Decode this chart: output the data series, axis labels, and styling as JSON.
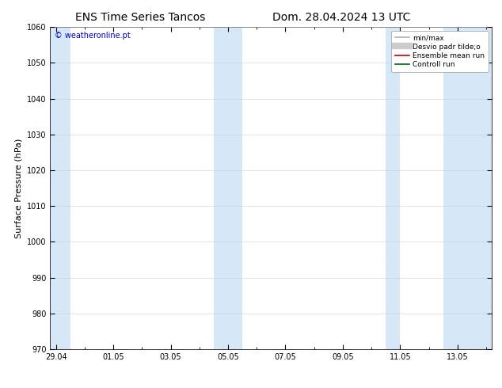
{
  "title_left": "ENS Time Series Tancos",
  "title_right": "Dom. 28.04.2024 13 UTC",
  "ylabel": "Surface Pressure (hPa)",
  "ylim": [
    970,
    1060
  ],
  "yticks": [
    970,
    980,
    990,
    1000,
    1010,
    1020,
    1030,
    1040,
    1050,
    1060
  ],
  "xtick_labels": [
    "29.04",
    "01.05",
    "03.05",
    "05.05",
    "07.05",
    "09.05",
    "11.05",
    "13.05"
  ],
  "xtick_positions": [
    0,
    2,
    4,
    6,
    8,
    10,
    12,
    14
  ],
  "xlim": [
    -0.2,
    15.2
  ],
  "shaded_bands": [
    {
      "x_start": -0.2,
      "x_end": 0.5
    },
    {
      "x_start": 5.5,
      "x_end": 6.5
    },
    {
      "x_start": 11.5,
      "x_end": 12.0
    },
    {
      "x_start": 13.5,
      "x_end": 15.2
    }
  ],
  "shade_color": "#d6e8f7",
  "watermark": "© weatheronline.pt",
  "watermark_color": "#0000bb",
  "legend_entries": [
    {
      "label": "min/max",
      "color": "#b0b0b0",
      "lw": 1.2,
      "style": "-"
    },
    {
      "label": "Desvio padr tilde;o",
      "color": "#cccccc",
      "lw": 6,
      "style": "-"
    },
    {
      "label": "Ensemble mean run",
      "color": "#cc0000",
      "lw": 1.2,
      "style": "-"
    },
    {
      "label": "Controll run",
      "color": "#006600",
      "lw": 1.2,
      "style": "-"
    }
  ],
  "bg_color": "#ffffff",
  "grid_color": "#cccccc",
  "tick_label_fontsize": 7,
  "axis_label_fontsize": 8,
  "title_fontsize": 10,
  "watermark_fontsize": 7
}
